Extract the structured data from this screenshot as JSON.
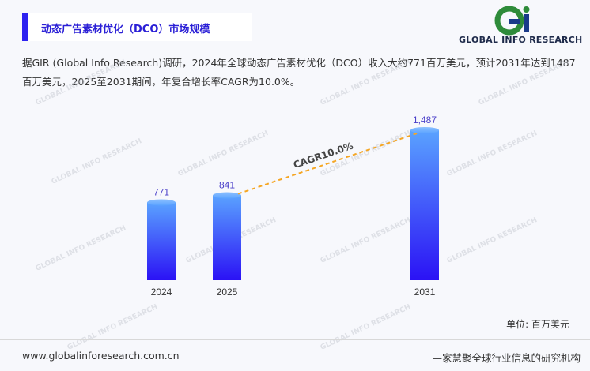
{
  "header": {
    "title": "动态广告素材优化（DCO）市场规模"
  },
  "brand": {
    "logo_text": "GLOBAL INFO RESEARCH",
    "watermark_text": "GLOBAL INFO RESEARCH",
    "colors": {
      "accent": "#2d22f0",
      "logo_green": "#2e8b3a",
      "logo_blue": "#1a3a8a"
    }
  },
  "description": "据GIR (Global Info Research)调研，2024年全球动态广告素材优化（DCO）收入大约771百万美元，预计2031年达到1487百万美元，2025至2031期间，年复合增长率CAGR为10.0%。",
  "chart_data": {
    "type": "bar",
    "categories": [
      "2024",
      "2025",
      "2031"
    ],
    "values": [
      771,
      841,
      1487
    ],
    "value_labels": [
      "771",
      "841",
      "1,487"
    ],
    "unit": "单位: 百万美元",
    "annotation": "CAGR10.0%",
    "bar_gradient": [
      "#5aa2ff",
      "#2b12f5"
    ],
    "label_color": "#4a3fc9",
    "cagr_line_color": "#f5a623",
    "grid": false
  },
  "footer": {
    "website": "www.globalinforesearch.com.cn",
    "slogan": "—家慧聚全球行业信息的研究机构"
  }
}
